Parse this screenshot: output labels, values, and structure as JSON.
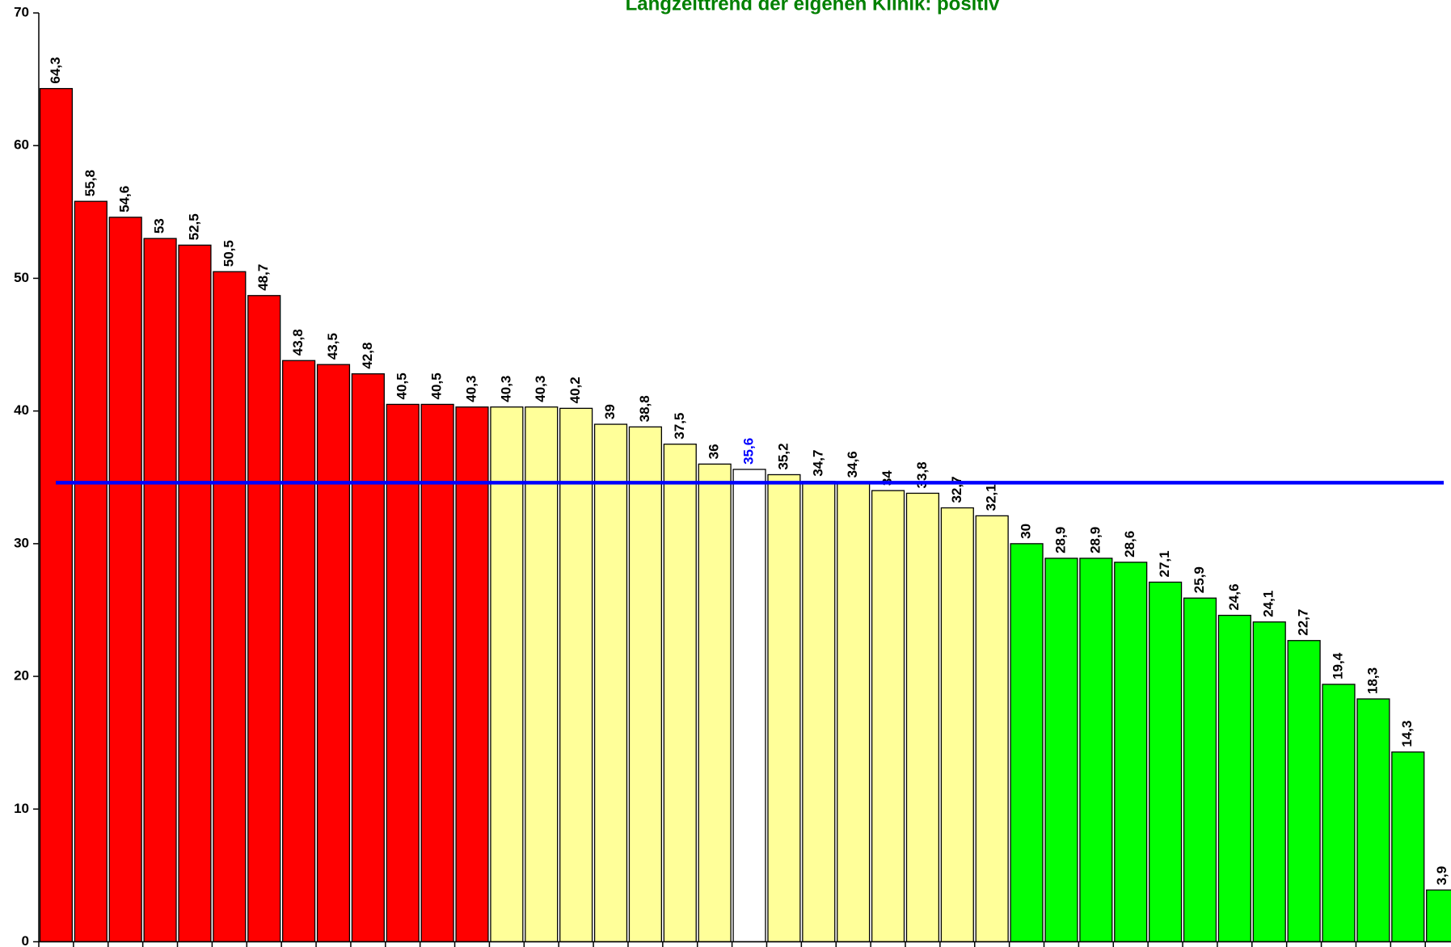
{
  "chart_data": {
    "type": "bar",
    "title": "Langzeittrend der eigenen Klinik: positiv",
    "title_color": "#008000",
    "values": [
      64.3,
      55.8,
      54.6,
      53,
      52.5,
      50.5,
      48.7,
      43.8,
      43.5,
      42.8,
      40.5,
      40.5,
      40.3,
      40.3,
      40.3,
      40.2,
      39,
      38.8,
      37.5,
      36,
      35.6,
      35.2,
      34.7,
      34.6,
      34,
      33.8,
      32.7,
      32.1,
      30,
      28.9,
      28.9,
      28.6,
      27.1,
      25.9,
      24.6,
      24.1,
      22.7,
      19.4,
      18.3,
      14.3,
      3.9
    ],
    "value_labels": [
      "64,3",
      "55,8",
      "54,6",
      "53",
      "52,5",
      "50,5",
      "48,7",
      "43,8",
      "43,5",
      "42,8",
      "40,5",
      "40,5",
      "40,3",
      "40,3",
      "40,3",
      "40,2",
      "39",
      "38,8",
      "37,5",
      "36",
      "35,6",
      "35,2",
      "34,7",
      "34,6",
      "34",
      "33,8",
      "32,7",
      "32,1",
      "30",
      "28,9",
      "28,9",
      "28,6",
      "27,1",
      "25,9",
      "24,6",
      "24,1",
      "22,7",
      "19,4",
      "18,3",
      "14,3",
      "3,9"
    ],
    "colors": [
      "#ff0000",
      "#ff0000",
      "#ff0000",
      "#ff0000",
      "#ff0000",
      "#ff0000",
      "#ff0000",
      "#ff0000",
      "#ff0000",
      "#ff0000",
      "#ff0000",
      "#ff0000",
      "#ff0000",
      "#ffff99",
      "#ffff99",
      "#ffff99",
      "#ffff99",
      "#ffff99",
      "#ffff99",
      "#ffff99",
      "#ffffff",
      "#ffff99",
      "#ffff99",
      "#ffff99",
      "#ffff99",
      "#ffff99",
      "#ffff99",
      "#ffff99",
      "#00ff00",
      "#00ff00",
      "#00ff00",
      "#00ff00",
      "#00ff00",
      "#00ff00",
      "#00ff00",
      "#00ff00",
      "#00ff00",
      "#00ff00",
      "#00ff00",
      "#00ff00",
      "#00ff00"
    ],
    "value_label_colors": [
      "#000000",
      "#000000",
      "#000000",
      "#000000",
      "#000000",
      "#000000",
      "#000000",
      "#000000",
      "#000000",
      "#000000",
      "#000000",
      "#000000",
      "#000000",
      "#000000",
      "#000000",
      "#000000",
      "#000000",
      "#000000",
      "#000000",
      "#000000",
      "#0000ff",
      "#000000",
      "#000000",
      "#000000",
      "#000000",
      "#000000",
      "#000000",
      "#000000",
      "#000000",
      "#000000",
      "#000000",
      "#000000",
      "#000000",
      "#000000",
      "#000000",
      "#000000",
      "#000000",
      "#000000",
      "#000000",
      "#000000",
      "#000000"
    ],
    "reference_line": {
      "value": 34.6,
      "color": "#0000ff"
    },
    "ylim": [
      0,
      70
    ],
    "yticks": [
      0,
      10,
      20,
      30,
      40,
      50,
      60,
      70
    ]
  }
}
